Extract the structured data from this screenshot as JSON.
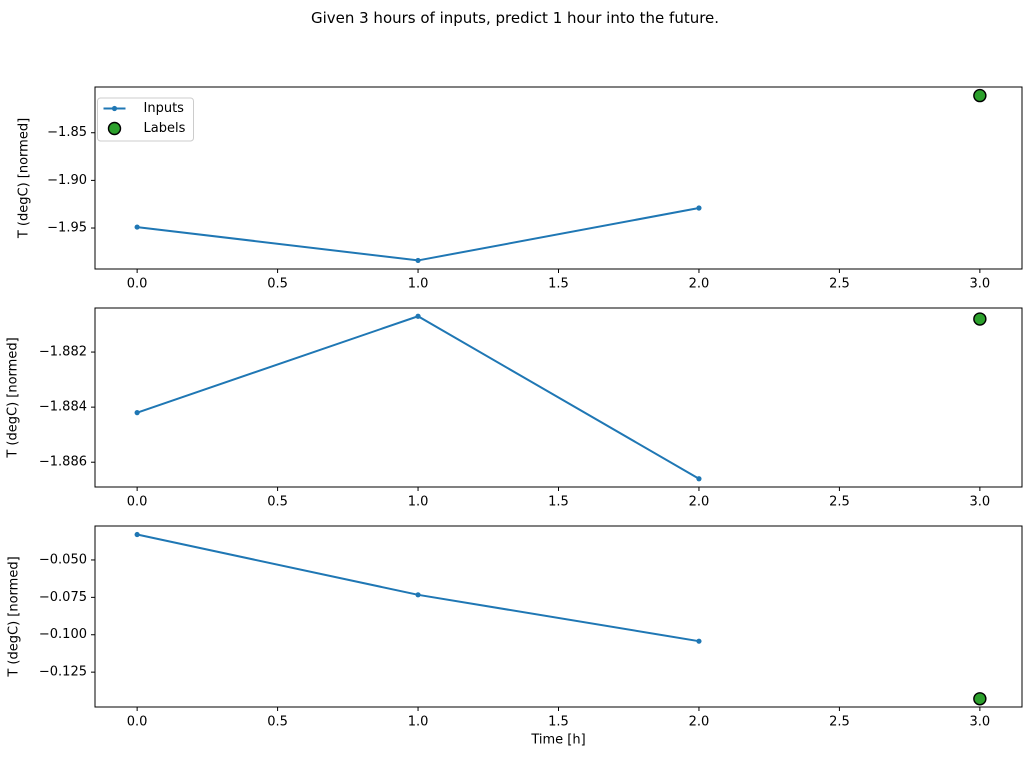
{
  "figure": {
    "title": "Given 3 hours of inputs, predict 1 hour into the future.",
    "xlabel": "Time [h]",
    "background": "#ffffff"
  },
  "legend": {
    "position": "upper-left",
    "entries": [
      {
        "label": "Inputs",
        "marker": "line-dot",
        "color": "#1f77b4"
      },
      {
        "label": "Labels",
        "marker": "circle",
        "fill": "#2ca02c",
        "edge": "#000000"
      }
    ]
  },
  "colors": {
    "inputs_line": "#1f77b4",
    "labels_fill": "#2ca02c",
    "labels_edge": "#000000",
    "axis": "#000000",
    "legend_border": "#cccccc"
  },
  "chart_data": [
    {
      "type": "line",
      "ylabel": "T (degC) [normed]",
      "xlim": [
        -0.15,
        3.15
      ],
      "ylim": [
        -1.993,
        -1.802
      ],
      "xticks": {
        "values": [
          0,
          0.5,
          1,
          1.5,
          2,
          2.5,
          3
        ],
        "labels": [
          "0.0",
          "0.5",
          "1.0",
          "1.5",
          "2.0",
          "2.5",
          "3.0"
        ]
      },
      "yticks": {
        "values": [
          -1.85,
          -1.9,
          -1.95
        ],
        "labels": [
          "−1.85",
          "−1.90",
          "−1.95"
        ]
      },
      "show_xticklabels": true,
      "show_legend": true,
      "series": [
        {
          "name": "Inputs",
          "type": "line",
          "x": [
            0,
            1,
            2
          ],
          "y": [
            -1.949,
            -1.984,
            -1.929
          ]
        },
        {
          "name": "Labels",
          "type": "scatter",
          "x": [
            3
          ],
          "y": [
            -1.811
          ]
        }
      ]
    },
    {
      "type": "line",
      "ylabel": "T (degC) [normed]",
      "xlim": [
        -0.15,
        3.15
      ],
      "ylim": [
        -1.8869,
        -1.8804
      ],
      "xticks": {
        "values": [
          0,
          0.5,
          1,
          1.5,
          2,
          2.5,
          3
        ],
        "labels": [
          "0.0",
          "0.5",
          "1.0",
          "1.5",
          "2.0",
          "2.5",
          "3.0"
        ]
      },
      "yticks": {
        "values": [
          -1.882,
          -1.884,
          -1.886
        ],
        "labels": [
          "−1.882",
          "−1.884",
          "−1.886"
        ]
      },
      "show_xticklabels": true,
      "show_legend": false,
      "series": [
        {
          "name": "Inputs",
          "type": "line",
          "x": [
            0,
            1,
            2
          ],
          "y": [
            -1.8842,
            -1.8807,
            -1.8866
          ]
        },
        {
          "name": "Labels",
          "type": "scatter",
          "x": [
            3
          ],
          "y": [
            -1.8808
          ]
        }
      ]
    },
    {
      "type": "line",
      "ylabel": "T (degC) [normed]",
      "xlabel": "Time [h]",
      "xlim": [
        -0.15,
        3.15
      ],
      "ylim": [
        -0.1483,
        -0.0273
      ],
      "xticks": {
        "values": [
          0,
          0.5,
          1,
          1.5,
          2,
          2.5,
          3
        ],
        "labels": [
          "0.0",
          "0.5",
          "1.0",
          "1.5",
          "2.0",
          "2.5",
          "3.0"
        ]
      },
      "yticks": {
        "values": [
          -0.05,
          -0.075,
          -0.1,
          -0.125
        ],
        "labels": [
          "−0.050",
          "−0.075",
          "−0.100",
          "−0.125"
        ]
      },
      "show_xticklabels": true,
      "show_legend": false,
      "series": [
        {
          "name": "Inputs",
          "type": "line",
          "x": [
            0,
            1,
            2
          ],
          "y": [
            -0.033,
            -0.0733,
            -0.1043
          ]
        },
        {
          "name": "Labels",
          "type": "scatter",
          "x": [
            3
          ],
          "y": [
            -0.1428
          ]
        }
      ]
    }
  ]
}
